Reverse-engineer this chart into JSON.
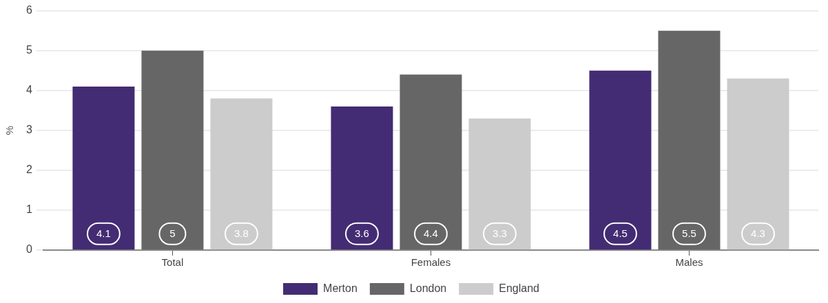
{
  "chart_data": {
    "type": "bar",
    "ylabel": "%",
    "categories": [
      "Total",
      "Females",
      "Males"
    ],
    "series": [
      {
        "name": "Merton",
        "color": "#432c73",
        "values": [
          4.1,
          3.6,
          4.5
        ]
      },
      {
        "name": "London",
        "color": "#666666",
        "values": [
          5,
          4.4,
          5.5
        ]
      },
      {
        "name": "England",
        "color": "#cccccc",
        "values": [
          3.8,
          3.3,
          4.3
        ]
      }
    ],
    "ylim": [
      0,
      6
    ],
    "yticks": [
      0,
      1,
      2,
      3,
      4,
      5,
      6
    ],
    "grid": "y",
    "legend": "bottom",
    "data_labels": true
  }
}
